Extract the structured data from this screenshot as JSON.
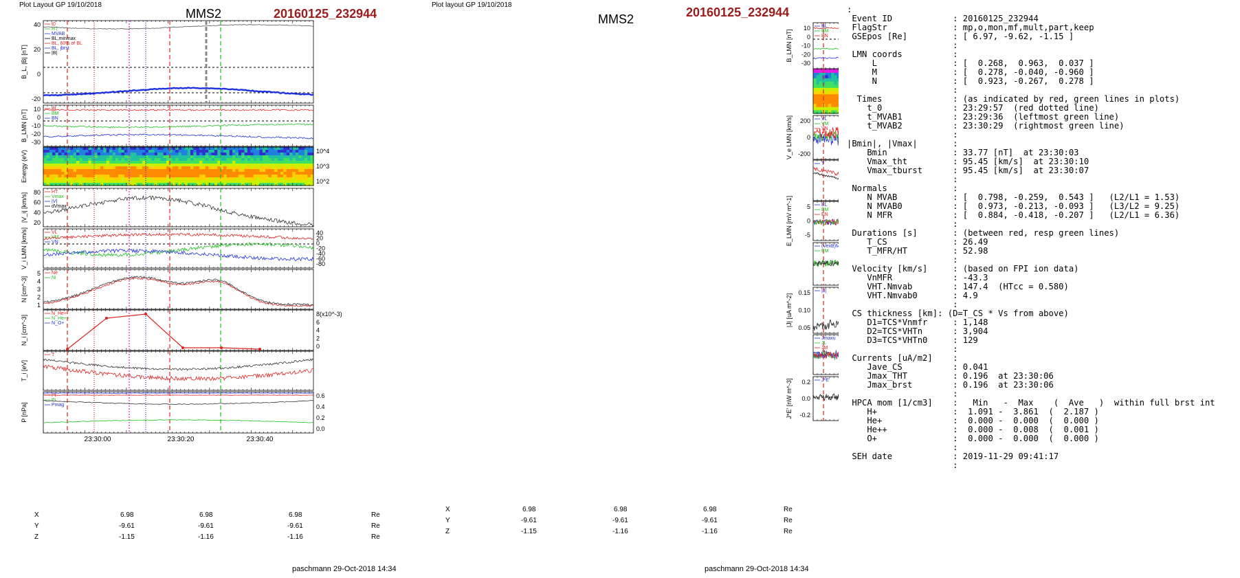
{
  "left": {
    "header": "Plot Layout GP 19/10/2018",
    "title": "MMS2",
    "event": "20160125_232944",
    "footer": "paschmann 29-Oct-2018 14:34",
    "time_ticks": [
      "23:30:00",
      "23:30:20",
      "23:30:40"
    ],
    "pos_rows": [
      {
        "label": "X",
        "values": [
          "6.98",
          "6.98",
          "6.98"
        ],
        "unit": "Re"
      },
      {
        "label": "Y",
        "values": [
          "-9.61",
          "-9.61",
          "-9.61"
        ],
        "unit": "Re"
      },
      {
        "label": "Z",
        "values": [
          "-1.15",
          "-1.16",
          "-1.16"
        ],
        "unit": "Re"
      }
    ],
    "panels": [
      {
        "ylabel": "B_L, |B| [nT]",
        "yticks_left": [
          "40",
          "20",
          "0",
          "-20"
        ],
        "legend": [
          "t0",
          "HT",
          "MVAB",
          "BL,minmax",
          "BL, 60% of BL",
          "BL, jbrst",
          "|B|"
        ]
      },
      {
        "ylabel": "B_LMN [nT]",
        "yticks_left": [
          "10",
          "0",
          "-10",
          "-20",
          "-30"
        ],
        "legend": [
          "BL",
          "BM",
          "BN"
        ]
      },
      {
        "ylabel": "Energy (eV)",
        "yticks_right": [
          "10^4",
          "10^3",
          "10^2"
        ]
      },
      {
        "ylabel": "|V_i| [km/s]",
        "yticks_left": [
          "80",
          "60",
          "40",
          "20"
        ],
        "legend": [
          "HT",
          "Vmax",
          "|V|",
          "dVmax"
        ]
      },
      {
        "ylabel": "V_i LMN [km/s]",
        "yticks_right": [
          "40",
          "20",
          "0",
          "-20",
          "-40",
          "-60",
          "-80"
        ],
        "legend": [
          "VL",
          "VM",
          "VN"
        ]
      },
      {
        "ylabel": "N [cm^-3]",
        "yticks_left": [
          "5",
          "4",
          "3",
          "2",
          "1"
        ],
        "legend": [
          "Ne",
          "Ni"
        ]
      },
      {
        "ylabel": "N_i [cm^-3]",
        "yticks_right": [
          "8(x10^-3)",
          "6",
          "4",
          "2",
          "0"
        ],
        "legend": [
          "N_He+",
          "N_He++",
          "N_O+"
        ]
      },
      {
        "ylabel": "T_i [eV]",
        "legend": [
          "T"
        ]
      },
      {
        "ylabel": "P [nPa]",
        "yticks_right": [
          "0.6",
          "0.4",
          "0.2",
          "0.0"
        ],
        "legend": [
          "Pt",
          "Pi",
          "Pmag"
        ]
      }
    ]
  },
  "mid": {
    "header": "Plot layout GP 19/10/2018",
    "title": "MMS2",
    "event": "20160125_232944",
    "footer": "paschmann 29-Oct-2018 14:34",
    "time_ticks": [
      "23:30:00",
      "23:30:20",
      "23:30:40"
    ],
    "pos_rows": [
      {
        "label": "X",
        "values": [
          "6.98",
          "6.98",
          "6.98"
        ],
        "unit": "Re"
      },
      {
        "label": "Y",
        "values": [
          "-9.61",
          "-9.61",
          "-9.61"
        ],
        "unit": "Re"
      },
      {
        "label": "Z",
        "values": [
          "-1.15",
          "-1.16",
          "-1.16"
        ],
        "unit": "Re"
      }
    ],
    "panels": [
      {
        "ylabel": "B_LMN [nT]",
        "yticks_left": [
          "10",
          "0",
          "-10",
          "-20",
          "-30"
        ],
        "legend": [
          "BL",
          "BM",
          "BN"
        ]
      },
      {
        "ylabel": "Energy (eV)",
        "yticks_right": [
          "10^4",
          "10^3",
          "10^2",
          "10^1"
        ]
      },
      {
        "ylabel": "V_e LMN [km/s]",
        "yticks_left": [
          "200",
          "0",
          "-200"
        ],
        "legend": [
          "VL",
          "VM",
          "VN"
        ]
      },
      {
        "ylabel": "T_e [eV]",
        "legend": [
          "T"
        ]
      },
      {
        "ylabel": "E_LMN [mV m^-1]",
        "yticks_left": [
          "5",
          "0",
          "-5"
        ],
        "legend": [
          "EL",
          "EM",
          "EN"
        ]
      },
      {
        "ylabel": "E_M [mV m^-1]",
        "yticks_right": [
          "10",
          "0",
          "-10"
        ],
        "legend": [
          "(VexB)M",
          "EM"
        ]
      },
      {
        "ylabel": "|J| [uA m^-2]",
        "yticks_left": [
          "0.15",
          "0.10",
          "0.05"
        ],
        "legend": [
          "|J|"
        ]
      },
      {
        "ylabel": "J [uA m^-2]",
        "yticks_right": [
          "0.1",
          "0.0",
          "-0.1"
        ],
        "legend": [
          "Jmaxu",
          "JL",
          "JM",
          "JN"
        ]
      },
      {
        "ylabel": "J*E' [nW m^-3]",
        "yticks_left": [
          "0.2",
          "0.0",
          "-0.2"
        ],
        "legend": [
          "J*E'"
        ]
      }
    ]
  },
  "info_lines": [
    ":",
    " Event ID            : 20160125_232944",
    " FlagStr             : mp,o,mon,mf,mult,part,keep",
    " GSEpos [Re]         : [ 6.97, -9.62, -1.15 ]",
    "                     :",
    " LMN coords          :",
    "     L               : [  0.268,  0.963,  0.037 ]",
    "     M               : [  0.278, -0.040, -0.960 ]",
    "     N               : [  0.923, -0.267,  0.278 ]",
    "                     :",
    "  Times              : (as indicated by red, green lines in plots)",
    "    t_0              : 23:29:57  (red dotted line)",
    "    t_MVAB1          : 23:29:36  (leftmost green line)",
    "    t_MVAB2          : 23:30:29  (rightmost green line)",
    "                     :",
    "|Bmin|, |Vmax|       :",
    "    Bmin             : 33.77 [nT]  at 23:30:03",
    "    Vmax_tht         : 95.45 [km/s]  at 23:30:10",
    "    Vmax_tburst      : 95.45 [km/s]  at 23:30:07",
    "                     :",
    " Normals             :",
    "    N MVAB           : [  0.798, -0.259,  0.543 ]   (L2/L1 = 1.53)",
    "    N MVAB0          : [  0.973, -0.213, -0.093 ]   (L3/L2 = 9.25)",
    "    N MFR            : [  0.884, -0.418, -0.207 ]   (L2/L1 = 6.36)",
    "                     :",
    " Durations [s]       : (between red, resp green lines)",
    "    T_CS             : 26.49",
    "    T_MFR/HT         : 52.98",
    "                     :",
    " Velocity [km/s]     : (based on FPI ion data)",
    "    VnMFR            : -43.3",
    "    VHT.Nmvab        : 147.4  (HTcc = 0.580)",
    "    VHT.Nmvab0       : 4.9",
    "                     :",
    " CS thickness [km]: (D=T_CS * Vs from above)",
    "    D1=TCS*Vnmfr     : 1,148",
    "    D2=TCS*VHTn      : 3,904",
    "    D3=TCS*VHTn0     : 129",
    "                     :",
    " Currents [uA/m2]    :",
    "    Jave_CS          : 0.041",
    "    Jmax_THT         : 0.196  at 23:30:06",
    "    Jmax_brst        : 0.196  at 23:30:06",
    "                     :",
    " HPCA mom [1/cm3]    :   Min   -  Max    (  Ave   )  within full brst int",
    "    H+               :  1.091 -  3.861  (  2.187 )",
    "    He+              :  0.000 -  0.000  (  0.000 )",
    "    He++             :  0.000 -  0.008  (  0.001 )",
    "    O+               :  0.000 -  0.000  (  0.000 )",
    "                     :",
    " SEH date            : 2019-11-29 09:41:17",
    "                     :"
  ],
  "colors": {
    "event": "#9b1b1b",
    "red": "#e02020",
    "green": "#20c020",
    "blue": "#2030e0",
    "magenta": "#e020e0",
    "black": "#000000"
  },
  "chart_data": {
    "type": "line",
    "description_panels": "multi-panel MMS2 time series, time axis 23:29:50 - 23:30:55",
    "x_range": [
      "23:29:50",
      "23:30:55"
    ],
    "markers": {
      "t0": "23:29:57",
      "t_MVAB1": "23:29:36",
      "t_MVAB2": "23:30:29"
    },
    "series": [
      {
        "name": "|B|",
        "panel": "left-1",
        "values": [
          36,
          37,
          38,
          38,
          37,
          37,
          38,
          38,
          37,
          36
        ]
      },
      {
        "name": "BL",
        "panel": "left-1",
        "values": [
          -26,
          -25,
          -22,
          -20,
          -19,
          -19,
          -18,
          -20,
          -21,
          -22
        ]
      },
      {
        "name": "|V|",
        "panel": "left-4",
        "values": [
          50,
          65,
          85,
          90,
          75,
          70,
          90,
          65,
          45,
          35
        ]
      },
      {
        "name": "Ne",
        "panel": "left-6",
        "values": [
          1.3,
          2.0,
          3.8,
          4.2,
          3.2,
          3.0,
          3.8,
          2.6,
          1.6,
          1.3
        ]
      },
      {
        "name": "Ni",
        "panel": "left-6",
        "values": [
          1.4,
          2.1,
          4.0,
          4.4,
          3.4,
          3.2,
          4.0,
          2.8,
          1.8,
          1.5
        ]
      },
      {
        "name": "N_He++",
        "panel": "left-7",
        "values": [
          0,
          6.8,
          7.7,
          0.3,
          0.3,
          0
        ]
      }
    ]
  }
}
